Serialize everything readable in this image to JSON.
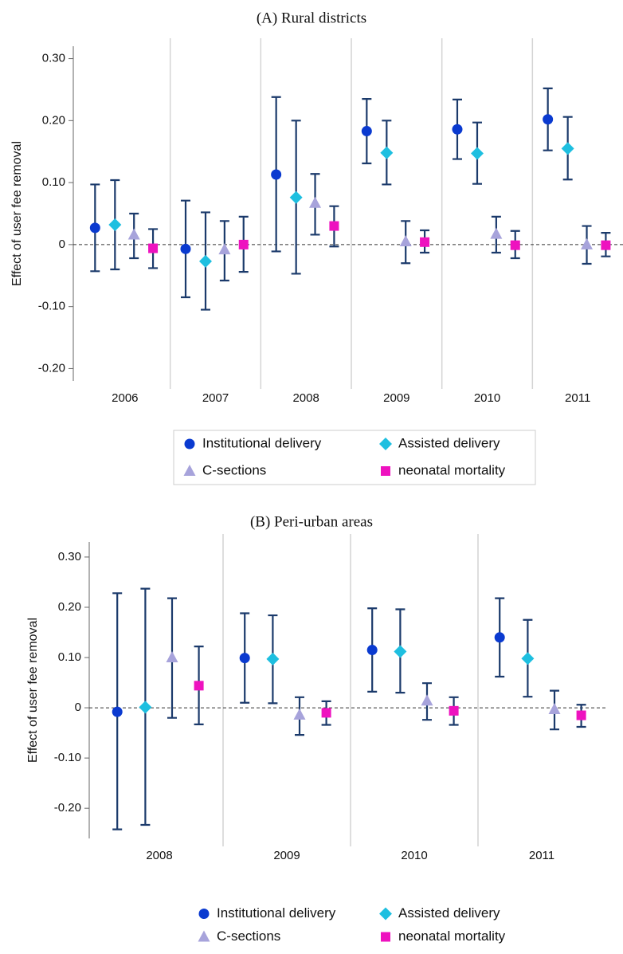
{
  "chart_data": [
    {
      "type": "errorbar",
      "title": "(A) Rural districts",
      "y_label": "Effect of user fee removal",
      "categories": [
        "2006",
        "2007",
        "2008",
        "2009",
        "2010",
        "2011"
      ],
      "ylim": [
        -0.22,
        0.32
      ],
      "yticks": [
        {
          "value": 0.3,
          "label": "0.30"
        },
        {
          "value": 0.2,
          "label": "0.20"
        },
        {
          "value": 0.1,
          "label": "0.10"
        },
        0,
        {
          "value": -0.1,
          "label": "-0.10"
        },
        {
          "value": -0.2,
          "label": "-0.20"
        }
      ],
      "legend_box": true,
      "series": [
        {
          "name": "Institutional delivery",
          "color": "#0a3ad0",
          "marker": "circle",
          "values": [
            0.027,
            -0.007,
            0.113,
            0.183,
            0.186,
            0.202
          ],
          "lower": [
            -0.043,
            -0.085,
            -0.011,
            0.131,
            0.138,
            0.152
          ],
          "upper": [
            0.097,
            0.071,
            0.238,
            0.235,
            0.234,
            0.252
          ]
        },
        {
          "name": "Assisted delivery",
          "color": "#1ebfe0",
          "marker": "diamond",
          "values": [
            0.032,
            -0.027,
            0.076,
            0.148,
            0.147,
            0.155
          ],
          "lower": [
            -0.04,
            -0.105,
            -0.047,
            0.097,
            0.098,
            0.105
          ],
          "upper": [
            0.104,
            0.052,
            0.2,
            0.2,
            0.197,
            0.206
          ]
        },
        {
          "name": "C-sections",
          "color": "#a7a3db",
          "marker": "triangle",
          "values": [
            0.016,
            -0.008,
            0.067,
            0.005,
            0.017,
            0.0
          ],
          "lower": [
            -0.022,
            -0.058,
            0.016,
            -0.03,
            -0.013,
            -0.031
          ],
          "upper": [
            0.05,
            0.038,
            0.114,
            0.038,
            0.045,
            0.03
          ]
        },
        {
          "name": "neonatal mortality",
          "color": "#ee12bf",
          "marker": "square",
          "values": [
            -0.006,
            0.0,
            0.03,
            0.004,
            -0.001,
            -0.001
          ],
          "lower": [
            -0.038,
            -0.044,
            -0.003,
            -0.013,
            -0.022,
            -0.019
          ],
          "upper": [
            0.025,
            0.045,
            0.062,
            0.023,
            0.022,
            0.019
          ]
        }
      ]
    },
    {
      "type": "errorbar",
      "title": "(B) Peri-urban areas",
      "y_label": "Effect of user fee removal",
      "categories": [
        "2008",
        "2009",
        "2010",
        "2011"
      ],
      "ylim": [
        -0.26,
        0.33
      ],
      "yticks": [
        {
          "value": 0.3,
          "label": "0.30"
        },
        {
          "value": 0.2,
          "label": "0.20"
        },
        {
          "value": 0.1,
          "label": "0.10"
        },
        0,
        {
          "value": -0.1,
          "label": "-0.10"
        },
        {
          "value": -0.2,
          "label": "-0.20"
        }
      ],
      "legend_box": false,
      "series": [
        {
          "name": "Institutional delivery",
          "color": "#0a3ad0",
          "marker": "circle",
          "values": [
            -0.008,
            0.099,
            0.115,
            0.14
          ],
          "lower": [
            -0.242,
            0.01,
            0.032,
            0.062
          ],
          "upper": [
            0.228,
            0.188,
            0.198,
            0.218
          ]
        },
        {
          "name": "Assisted delivery",
          "color": "#1ebfe0",
          "marker": "diamond",
          "values": [
            0.001,
            0.097,
            0.112,
            0.098
          ],
          "lower": [
            -0.233,
            0.009,
            0.03,
            0.022
          ],
          "upper": [
            0.237,
            0.184,
            0.196,
            0.175
          ]
        },
        {
          "name": "C-sections",
          "color": "#a7a3db",
          "marker": "triangle",
          "values": [
            0.1,
            -0.014,
            0.014,
            -0.003
          ],
          "lower": [
            -0.02,
            -0.054,
            -0.024,
            -0.043
          ],
          "upper": [
            0.218,
            0.021,
            0.049,
            0.034
          ]
        },
        {
          "name": "neonatal mortality",
          "color": "#ee12bf",
          "marker": "square",
          "values": [
            0.044,
            -0.01,
            -0.006,
            -0.015
          ],
          "lower": [
            -0.033,
            -0.034,
            -0.034,
            -0.038
          ],
          "upper": [
            0.122,
            0.013,
            0.021,
            0.006
          ]
        }
      ]
    }
  ]
}
